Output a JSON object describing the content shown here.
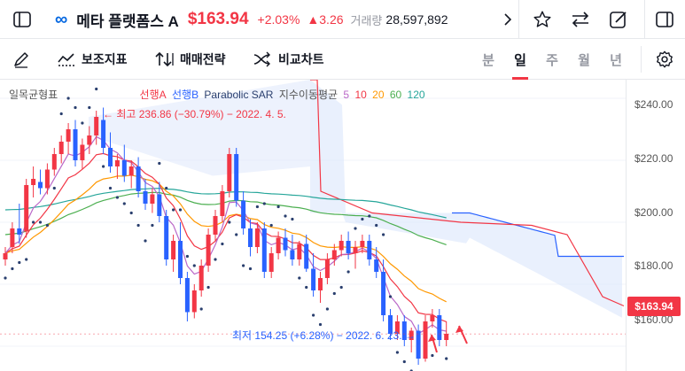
{
  "header": {
    "logo": "∞",
    "name": "메타 플랫폼스 A",
    "price": "$163.94",
    "change_pct": "+2.03%",
    "change_abs": "▲3.26",
    "volume_label": "거래량",
    "volume": "28,597,892"
  },
  "toolbar": {
    "indicators": "보조지표",
    "strategy": "매매전략",
    "compare": "비교차트",
    "periods": [
      "분",
      "일",
      "주",
      "월",
      "년"
    ],
    "active_period": "일"
  },
  "legend": {
    "ichimoku": "일목균형표",
    "span_a": "선행A",
    "span_b": "선행B",
    "sar": "Parabolic SAR",
    "ema_label": "지수이동평균",
    "ema_periods": [
      "5",
      "10",
      "20",
      "60",
      "120"
    ]
  },
  "annotations": {
    "high": "← 최고 236.86 (−30.79%) − 2022. 4. 5.",
    "low": "최저 154.25 (+6.28%) − 2022. 6. 23. →"
  },
  "price_axis": {
    "ticks": [
      "$240.00",
      "$220.00",
      "$200.00",
      "$180.00",
      "$160.00"
    ],
    "current_price": "$163.94"
  },
  "colors": {
    "up": "#f23645",
    "down": "#2962ff",
    "ema5": "#ba68c8",
    "ema10": "#f23645",
    "ema20": "#ff9800",
    "ema60": "#4caf50",
    "ema120": "#26a69a"
  },
  "chart_data": {
    "type": "candlestick",
    "ylim": [
      152,
      246
    ],
    "candles": [
      [
        188,
        192,
        186,
        190
      ],
      [
        192,
        200,
        190,
        198
      ],
      [
        198,
        206,
        193,
        196
      ],
      [
        197,
        214,
        195,
        212
      ],
      [
        212,
        218,
        208,
        214
      ],
      [
        213,
        217,
        209,
        211
      ],
      [
        211,
        219,
        209,
        217
      ],
      [
        217,
        224,
        215,
        222
      ],
      [
        222,
        228,
        219,
        226
      ],
      [
        226,
        232,
        222,
        230
      ],
      [
        230,
        233,
        218,
        220
      ],
      [
        220,
        227,
        217,
        225
      ],
      [
        225,
        231,
        222,
        228
      ],
      [
        228,
        236,
        225,
        234
      ],
      [
        233,
        237,
        222,
        224
      ],
      [
        224,
        229,
        216,
        218
      ],
      [
        218,
        222,
        214,
        220
      ],
      [
        220,
        225,
        213,
        215
      ],
      [
        215,
        220,
        211,
        218
      ],
      [
        218,
        221,
        208,
        210
      ],
      [
        210,
        214,
        204,
        206
      ],
      [
        206,
        211,
        203,
        209
      ],
      [
        209,
        213,
        200,
        202
      ],
      [
        202,
        204,
        186,
        188
      ],
      [
        188,
        196,
        184,
        194
      ],
      [
        194,
        200,
        180,
        182
      ],
      [
        182,
        184,
        168,
        171
      ],
      [
        171,
        180,
        169,
        178
      ],
      [
        178,
        188,
        176,
        186
      ],
      [
        186,
        198,
        184,
        196
      ],
      [
        196,
        204,
        194,
        202
      ],
      [
        202,
        212,
        200,
        210
      ],
      [
        210,
        224,
        208,
        222
      ],
      [
        222,
        224,
        205,
        207
      ],
      [
        207,
        210,
        196,
        198
      ],
      [
        198,
        201,
        189,
        192
      ],
      [
        192,
        200,
        190,
        198
      ],
      [
        198,
        200,
        182,
        184
      ],
      [
        184,
        192,
        182,
        190
      ],
      [
        190,
        197,
        188,
        195
      ],
      [
        195,
        198,
        189,
        191
      ],
      [
        191,
        196,
        186,
        188
      ],
      [
        188,
        194,
        186,
        193
      ],
      [
        193,
        196,
        184,
        185
      ],
      [
        185,
        190,
        176,
        178
      ],
      [
        178,
        184,
        174,
        182
      ],
      [
        182,
        190,
        180,
        188
      ],
      [
        188,
        193,
        186,
        191
      ],
      [
        191,
        196,
        189,
        194
      ],
      [
        194,
        197,
        188,
        190
      ],
      [
        190,
        194,
        185,
        192
      ],
      [
        192,
        196,
        190,
        194
      ],
      [
        194,
        196,
        186,
        188
      ],
      [
        188,
        192,
        182,
        184
      ],
      [
        184,
        188,
        168,
        170
      ],
      [
        170,
        172,
        162,
        164
      ],
      [
        164,
        170,
        162,
        168
      ],
      [
        168,
        170,
        160,
        162
      ],
      [
        162,
        166,
        158,
        165
      ],
      [
        165,
        167,
        154,
        156
      ],
      [
        156,
        170,
        155,
        168
      ],
      [
        168,
        172,
        166,
        170
      ],
      [
        170,
        172,
        160,
        162
      ],
      [
        162,
        168,
        160,
        164
      ]
    ]
  }
}
